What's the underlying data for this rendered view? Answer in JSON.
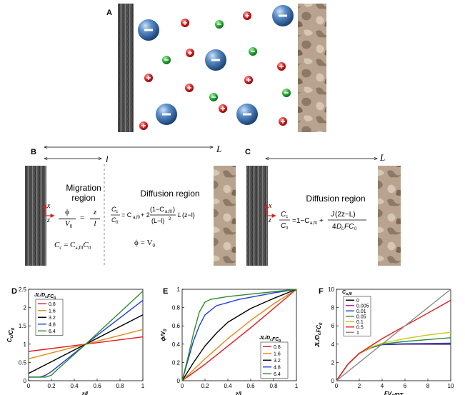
{
  "panels": {
    "A": "A",
    "B": "B",
    "C": "C",
    "D": "D",
    "E": "E",
    "F": "F"
  },
  "panel_b": {
    "length_L": "L",
    "length_l": "l",
    "axis_x": "x",
    "axis_z": "z",
    "migration_title_1": "Migration",
    "migration_title_2": "region",
    "migration_eq_lhs_num": "ϕ",
    "migration_eq_lhs_den": "V",
    "migration_eq_lhs_den_sub": "0",
    "migration_eq_rhs_num": "z",
    "migration_eq_rhs_den": "l",
    "migration_conc_eq": "C",
    "migration_conc_eq_sub": "c",
    "migration_conc_eq_rhs": "= C",
    "migration_conc_eq_rhs_sub": "a,f0",
    "migration_conc_eq_tail": "C",
    "migration_conc_eq_tail_sub": "0",
    "diffusion_title": "Diffusion region",
    "diffusion_eq_line": "= C_a,f0 + 2 (1 − C_a,f0) / (L − l)² · L(z − l)",
    "diffusion_phi_eq": "ϕ = V",
    "diffusion_phi_eq_sub": "0"
  },
  "panel_c": {
    "length_L": "L",
    "axis_x": "x",
    "axis_z": "z",
    "diffusion_title": "Diffusion region",
    "diffusion_eq_line": "= 1 − C_a,f0 + J(2z − L) / 4D_c F C_0"
  },
  "chart_data": [
    {
      "id": "D",
      "type": "line",
      "xlabel": "z/L",
      "ylabel": "Cc/C0",
      "xlim": [
        0,
        1
      ],
      "ylim": [
        0,
        2.5
      ],
      "xticks": [
        "0",
        "0.2",
        "0.4",
        "0.6",
        "0.8",
        "1"
      ],
      "yticks": [
        "0",
        "0.5",
        "1",
        "1.5",
        "2",
        "2.5"
      ],
      "legend_title": "JL/D_cFC_0",
      "legend_placement": "top-left",
      "series": [
        {
          "name": "0.8",
          "color": "#e41a1c",
          "x": [
            0,
            0.5,
            1
          ],
          "y": [
            0.8,
            1.0,
            1.2
          ]
        },
        {
          "name": "1.6",
          "color": "#e08a1e",
          "x": [
            0,
            0.5,
            1
          ],
          "y": [
            0.6,
            1.0,
            1.4
          ]
        },
        {
          "name": "3.2",
          "color": "#000000",
          "x": [
            0,
            0.5,
            1
          ],
          "y": [
            0.2,
            1.0,
            1.8
          ]
        },
        {
          "name": "4.8",
          "color": "#1f3bd6",
          "x": [
            0,
            0.1,
            0.15,
            0.2,
            0.5,
            1
          ],
          "y": [
            0.1,
            0.1,
            0.15,
            0.25,
            1.0,
            2.2
          ]
        },
        {
          "name": "6.4",
          "color": "#2e8b2e",
          "x": [
            0,
            0.1,
            0.15,
            0.2,
            0.25,
            0.5,
            1
          ],
          "y": [
            0.1,
            0.1,
            0.1,
            0.15,
            0.3,
            1.0,
            2.45
          ]
        }
      ]
    },
    {
      "id": "E",
      "type": "line",
      "xlabel": "z/L",
      "ylabel": "ϕ/V0",
      "xlim": [
        0,
        1
      ],
      "ylim": [
        0,
        1
      ],
      "xticks": [
        "0",
        "0.2",
        "0.4",
        "0.6",
        "0.8",
        "1"
      ],
      "yticks": [
        "0",
        "0.2",
        "0.4",
        "0.6",
        "0.8",
        "1"
      ],
      "legend_title": "JL/D_cFC_0",
      "legend_placement": "bottom-right",
      "series": [
        {
          "name": "0.8",
          "color": "#e41a1c",
          "x": [
            0,
            0.2,
            0.4,
            0.6,
            0.8,
            1
          ],
          "y": [
            0,
            0.18,
            0.38,
            0.58,
            0.79,
            1.0
          ]
        },
        {
          "name": "1.6",
          "color": "#e08a1e",
          "x": [
            0,
            0.2,
            0.4,
            0.6,
            0.8,
            1
          ],
          "y": [
            0,
            0.24,
            0.46,
            0.66,
            0.84,
            1.0
          ]
        },
        {
          "name": "3.2",
          "color": "#000000",
          "x": [
            0,
            0.1,
            0.2,
            0.3,
            0.4,
            0.6,
            0.8,
            1
          ],
          "y": [
            0,
            0.2,
            0.38,
            0.52,
            0.64,
            0.79,
            0.9,
            1.0
          ]
        },
        {
          "name": "4.8",
          "color": "#1f3bd6",
          "x": [
            0,
            0.05,
            0.1,
            0.15,
            0.2,
            0.3,
            0.5,
            0.8,
            1
          ],
          "y": [
            0,
            0.22,
            0.44,
            0.6,
            0.72,
            0.82,
            0.89,
            0.96,
            1.0
          ]
        },
        {
          "name": "6.4",
          "color": "#2e8b2e",
          "x": [
            0,
            0.05,
            0.1,
            0.15,
            0.2,
            0.25,
            0.4,
            0.7,
            1
          ],
          "y": [
            0,
            0.25,
            0.52,
            0.75,
            0.86,
            0.89,
            0.92,
            0.96,
            1.0
          ]
        }
      ]
    },
    {
      "id": "F",
      "type": "line",
      "xlabel": "FV_0/RT",
      "ylabel": "JL/D_cFC_0",
      "xlim": [
        0,
        10
      ],
      "ylim": [
        0,
        10
      ],
      "xticks": [
        "0",
        "2",
        "4",
        "6",
        "8",
        "10"
      ],
      "yticks": [
        "0",
        "2",
        "4",
        "6",
        "8",
        "10"
      ],
      "legend_title": "C_a,f0",
      "legend_placement": "top-left",
      "series": [
        {
          "name": "0",
          "color": "#000000",
          "x": [
            0,
            1,
            2,
            3,
            4,
            6,
            8,
            10
          ],
          "y": [
            0,
            1.8,
            3.0,
            3.6,
            3.95,
            4.0,
            4.0,
            4.0
          ]
        },
        {
          "name": "0.005",
          "color": "#b01e8f",
          "x": [
            0,
            1,
            2,
            3,
            4,
            6,
            8,
            10
          ],
          "y": [
            0,
            1.8,
            3.0,
            3.6,
            3.95,
            4.02,
            4.03,
            4.05
          ]
        },
        {
          "name": "0.01",
          "color": "#1f3bd6",
          "x": [
            0,
            1,
            2,
            3,
            4,
            6,
            8,
            10
          ],
          "y": [
            0,
            1.8,
            3.0,
            3.6,
            3.95,
            4.05,
            4.08,
            4.1
          ]
        },
        {
          "name": "0.05",
          "color": "#2e8b2e",
          "x": [
            0,
            1,
            2,
            3,
            4,
            6,
            8,
            10
          ],
          "y": [
            0,
            1.8,
            3.0,
            3.6,
            4.0,
            4.3,
            4.5,
            4.7
          ]
        },
        {
          "name": "0.1",
          "color": "#c8c81e",
          "x": [
            0,
            1,
            2,
            3,
            4,
            6,
            8,
            10
          ],
          "y": [
            0,
            1.8,
            3.0,
            3.65,
            4.1,
            4.6,
            5.0,
            5.3
          ]
        },
        {
          "name": "0.5",
          "color": "#e41a1c",
          "x": [
            0,
            1,
            2,
            3,
            4,
            6,
            8,
            10
          ],
          "y": [
            0,
            1.8,
            3.0,
            3.8,
            4.6,
            6.0,
            7.4,
            8.8
          ]
        },
        {
          "name": "1",
          "color": "#888888",
          "x": [
            0,
            10
          ],
          "y": [
            0,
            10
          ]
        }
      ]
    }
  ]
}
